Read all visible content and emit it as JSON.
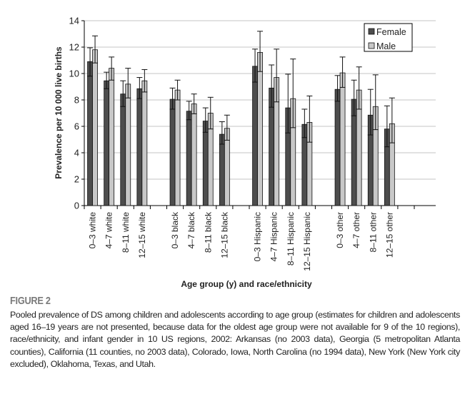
{
  "chart_data": {
    "type": "bar",
    "xlabel": "Age group (y) and race/ethnicity",
    "ylabel": "Prevalence per 10 000 live births",
    "ylim": [
      0,
      14
    ],
    "yticks": [
      0,
      2,
      4,
      6,
      8,
      10,
      12,
      14
    ],
    "grid": "horizontal",
    "legend_position": "top-right",
    "categories": [
      "0–3 white",
      "4–7 white",
      "8–11 white",
      "12–15 white",
      "",
      "0–3 black",
      "4–7 black",
      "8–11 black",
      "12–15 black",
      "",
      "0–3 Hispanic",
      "4–7 Hispanic",
      "8–11 Hispanic",
      "12–15 Hispanic",
      "",
      "0–3 other",
      "4–7 other",
      "8–11 other",
      "12–15 other",
      ""
    ],
    "series": [
      {
        "name": "Female",
        "color": "#4d4d4d",
        "values": [
          10.9,
          9.45,
          8.45,
          8.85,
          null,
          8.05,
          7.15,
          6.4,
          5.4,
          null,
          10.55,
          8.9,
          7.4,
          6.15,
          null,
          8.8,
          8.05,
          6.85,
          5.8,
          null
        ],
        "ci_low": [
          9.8,
          8.85,
          7.5,
          8.1,
          null,
          7.3,
          6.5,
          5.55,
          4.65,
          null,
          9.35,
          7.45,
          5.5,
          5.15,
          null,
          7.9,
          6.8,
          5.35,
          4.45,
          null
        ],
        "ci_high": [
          11.95,
          10.1,
          9.45,
          9.7,
          null,
          8.9,
          7.9,
          7.4,
          6.35,
          null,
          11.85,
          10.65,
          9.95,
          7.3,
          null,
          9.85,
          9.5,
          8.8,
          7.55,
          null
        ]
      },
      {
        "name": "Male",
        "color": "#c8c8c8",
        "values": [
          11.8,
          10.4,
          9.2,
          9.45,
          null,
          8.75,
          7.7,
          7.0,
          5.85,
          null,
          11.6,
          9.7,
          8.1,
          6.3,
          null,
          10.05,
          8.75,
          7.5,
          6.2,
          null
        ],
        "ci_low": [
          10.8,
          9.5,
          8.15,
          8.6,
          null,
          8.0,
          6.95,
          5.8,
          4.95,
          null,
          10.15,
          7.85,
          5.9,
          4.8,
          null,
          8.95,
          7.3,
          5.75,
          4.75,
          null
        ],
        "ci_high": [
          12.85,
          11.25,
          10.4,
          10.3,
          null,
          9.5,
          8.45,
          8.2,
          6.85,
          null,
          13.2,
          11.85,
          11.1,
          8.3,
          null,
          11.25,
          10.5,
          9.9,
          8.15,
          null
        ]
      }
    ]
  },
  "figure": {
    "label": "FIGURE 2",
    "caption": "Pooled prevalence of DS among children and adolescents according to age group (estimates for children and adolescents aged 16–19 years are not presented, because data for the oldest age group were not available for 9 of the 10 regions), race/ethnicity, and infant gender in 10 US regions, 2002: Arkansas (no 2003 data), Georgia (5 metropolitan Atlanta counties), California (11 counties, no 2003 data), Colorado, Iowa, North Carolina (no 1994 data), New York (New York city excluded), Oklahoma, Texas, and Utah."
  }
}
